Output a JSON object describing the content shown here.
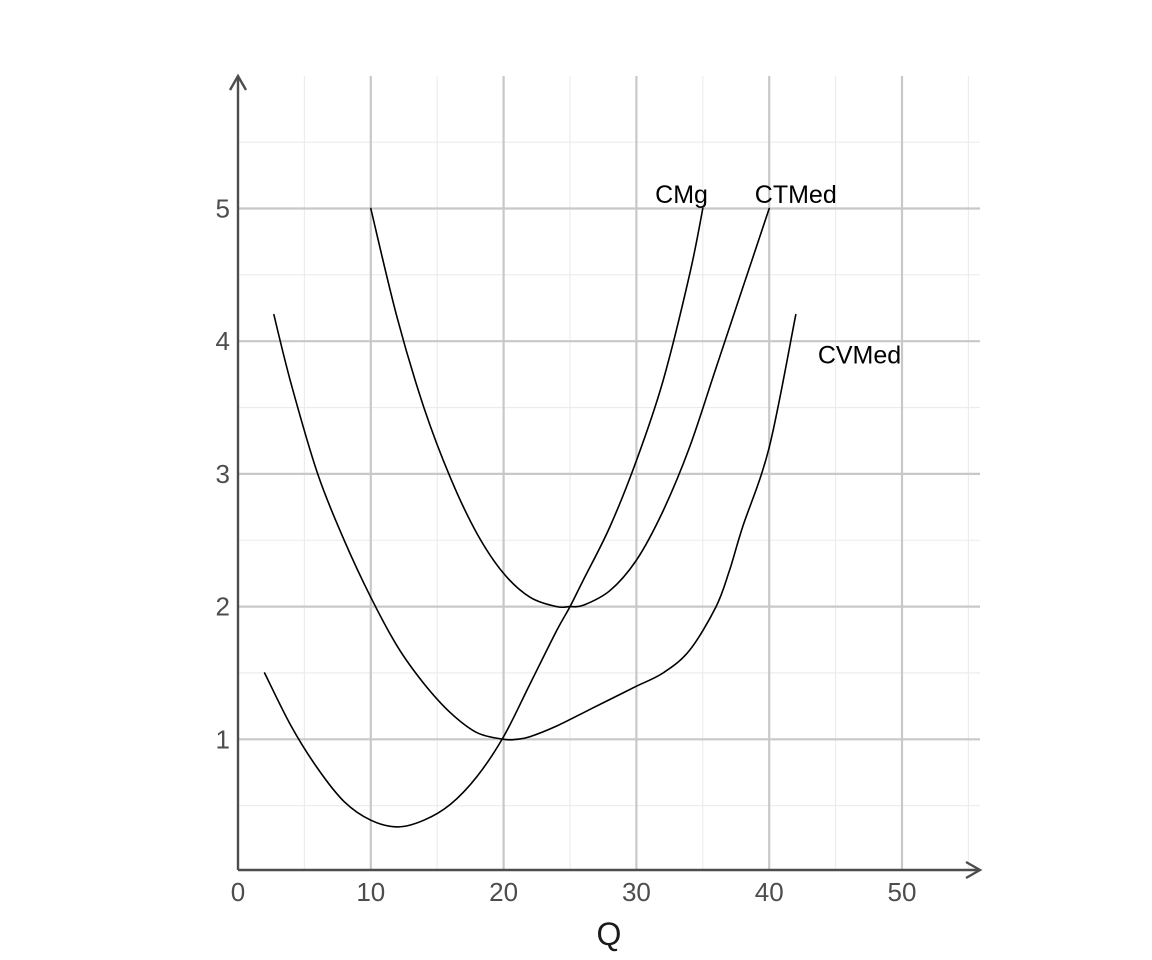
{
  "chart_data": {
    "type": "line",
    "title": "",
    "xlabel": "Q",
    "ylabel": "",
    "xlim": [
      0,
      56
    ],
    "ylim": [
      0,
      6
    ],
    "x_ticks": [
      0,
      10,
      20,
      30,
      40,
      50
    ],
    "y_ticks": [
      1,
      2,
      3,
      4,
      5
    ],
    "x_tick_labels": [
      "0",
      "10",
      "20",
      "30",
      "40",
      "50"
    ],
    "y_tick_labels": [
      "1",
      "2",
      "3",
      "4",
      "5"
    ],
    "grid": true,
    "legend": "none",
    "series": [
      {
        "name": "CMg",
        "x": [
          2,
          4,
          6,
          8,
          10,
          12,
          14,
          16,
          18,
          20,
          22,
          24,
          25,
          26,
          28,
          30,
          32,
          34,
          35
        ],
        "y": [
          1.5,
          1.1,
          0.78,
          0.53,
          0.39,
          0.34,
          0.39,
          0.51,
          0.72,
          1.02,
          1.42,
          1.82,
          2.0,
          2.2,
          2.6,
          3.1,
          3.7,
          4.5,
          5.0
        ]
      },
      {
        "name": "CTMed",
        "x": [
          10,
          12,
          14,
          16,
          18,
          20,
          22,
          24,
          25,
          26,
          28,
          30,
          32,
          34,
          36,
          38,
          40
        ],
        "y": [
          5.0,
          4.17,
          3.5,
          2.97,
          2.55,
          2.25,
          2.07,
          2.0,
          2.0,
          2.01,
          2.12,
          2.35,
          2.72,
          3.2,
          3.8,
          4.4,
          5.0
        ]
      },
      {
        "name": "CVMed",
        "x": [
          2.7,
          4,
          6,
          8,
          10,
          12,
          14,
          16,
          18,
          20,
          21,
          22,
          24,
          26,
          28,
          30,
          32,
          34,
          36,
          37,
          38,
          40,
          42
        ],
        "y": [
          4.2,
          3.68,
          3.0,
          2.5,
          2.07,
          1.7,
          1.42,
          1.2,
          1.05,
          1.0,
          1.0,
          1.02,
          1.1,
          1.2,
          1.3,
          1.4,
          1.5,
          1.67,
          2.0,
          2.27,
          2.6,
          3.2,
          4.2
        ]
      }
    ],
    "annotations": [
      {
        "text": "CMg",
        "x": 33.4,
        "y": 5.11,
        "series": "CMg"
      },
      {
        "text": "CTMed",
        "x": 42,
        "y": 5.11,
        "series": "CTMed"
      },
      {
        "text": "CVMed",
        "x": 46.8,
        "y": 3.9,
        "series": "CVMed"
      }
    ]
  }
}
